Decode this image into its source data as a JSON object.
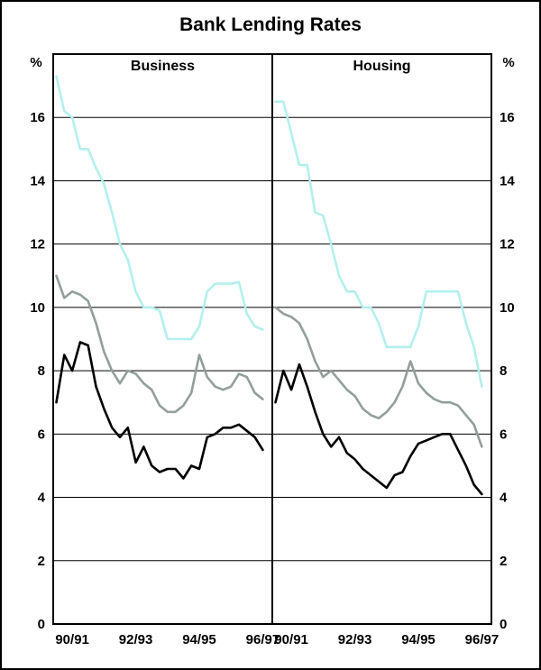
{
  "title": "Bank Lending Rates",
  "chart_data": {
    "type": "line",
    "title": "Bank Lending Rates",
    "ylabel": "%",
    "ylim": [
      0,
      18
    ],
    "y_ticks": [
      0,
      2,
      4,
      6,
      8,
      10,
      12,
      14,
      16
    ],
    "grid": true,
    "legend": "none",
    "x_range": [
      1990.4,
      1997.3
    ],
    "x": [
      1990.5,
      1990.75,
      1991,
      1991.25,
      1991.5,
      1991.75,
      1992,
      1992.25,
      1992.5,
      1992.75,
      1993,
      1993.25,
      1993.5,
      1993.75,
      1994,
      1994.25,
      1994.5,
      1994.75,
      1995,
      1995.25,
      1995.5,
      1995.75,
      1996,
      1996.25,
      1996.5,
      1996.75,
      1997
    ],
    "x_ticks": [
      {
        "value": 1991,
        "label": "90/91"
      },
      {
        "value": 1993,
        "label": "92/93"
      },
      {
        "value": 1995,
        "label": "94/95"
      },
      {
        "value": 1997,
        "label": "96/97"
      }
    ],
    "panels": [
      {
        "label": "Business",
        "series": [
          {
            "name": "light-blue-line",
            "color": "#b3f0ec",
            "values": [
              17.3,
              16.2,
              16.0,
              15.0,
              15.0,
              14.4,
              13.9,
              13.0,
              12.0,
              11.5,
              10.5,
              10.0,
              10.0,
              9.9,
              9.0,
              9.0,
              9.0,
              9.0,
              9.4,
              10.5,
              10.75,
              10.75,
              10.75,
              10.8,
              9.8,
              9.4,
              9.3
            ]
          },
          {
            "name": "grey-line",
            "color": "#949e9a",
            "values": [
              11.0,
              10.3,
              10.5,
              10.4,
              10.2,
              9.5,
              8.6,
              8.0,
              7.6,
              8.0,
              7.9,
              7.6,
              7.4,
              6.9,
              6.7,
              6.7,
              6.9,
              7.3,
              8.5,
              7.8,
              7.5,
              7.4,
              7.5,
              7.9,
              7.8,
              7.3,
              7.1
            ]
          },
          {
            "name": "black-line",
            "color": "#000000",
            "values": [
              7.0,
              8.5,
              8.0,
              8.9,
              8.8,
              7.5,
              6.8,
              6.2,
              5.9,
              6.2,
              5.1,
              5.6,
              5.0,
              4.8,
              4.9,
              4.9,
              4.6,
              5.0,
              4.9,
              5.9,
              6.0,
              6.2,
              6.2,
              6.3,
              6.1,
              5.9,
              5.5
            ]
          }
        ]
      },
      {
        "label": "Housing",
        "series": [
          {
            "name": "light-blue-line",
            "color": "#b3f0ec",
            "values": [
              16.5,
              16.5,
              15.5,
              14.5,
              14.5,
              13.0,
              12.9,
              12.0,
              11.0,
              10.5,
              10.5,
              10.0,
              10.0,
              9.5,
              8.75,
              8.75,
              8.75,
              8.75,
              9.4,
              10.5,
              10.5,
              10.5,
              10.5,
              10.5,
              9.5,
              8.75,
              7.5
            ]
          },
          {
            "name": "grey-line",
            "color": "#949e9a",
            "values": [
              10.0,
              9.8,
              9.7,
              9.5,
              9.0,
              8.3,
              7.8,
              8.0,
              7.7,
              7.4,
              7.2,
              6.8,
              6.6,
              6.5,
              6.7,
              7.0,
              7.5,
              8.3,
              7.6,
              7.3,
              7.1,
              7.0,
              7.0,
              6.9,
              6.6,
              6.3,
              5.6
            ]
          },
          {
            "name": "black-line",
            "color": "#000000",
            "values": [
              7.0,
              8.0,
              7.4,
              8.2,
              7.5,
              6.7,
              6.0,
              5.6,
              5.9,
              5.4,
              5.2,
              4.9,
              4.7,
              4.5,
              4.3,
              4.7,
              4.8,
              5.3,
              5.7,
              5.8,
              5.9,
              6.0,
              6.0,
              5.5,
              5.0,
              4.4,
              4.1
            ]
          }
        ]
      }
    ]
  }
}
